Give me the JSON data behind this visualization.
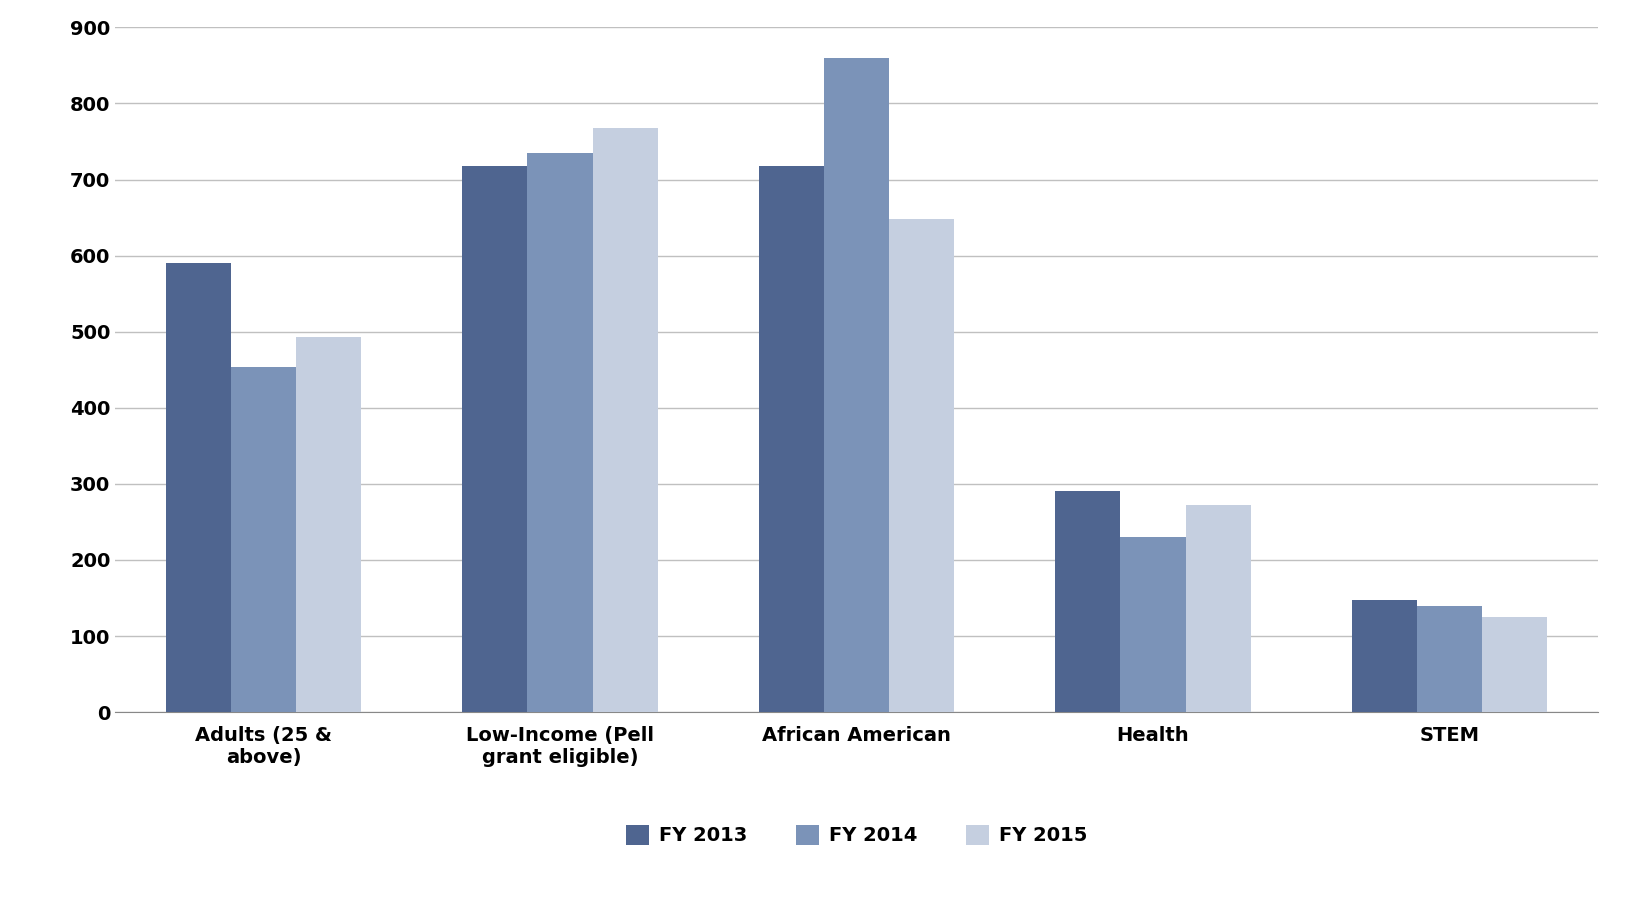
{
  "categories": [
    "Adults (25 &\nabove)",
    "Low-Income (Pell\ngrant eligible)",
    "African American",
    "Health",
    "STEM"
  ],
  "series": {
    "FY 2013": [
      590,
      718,
      718,
      290,
      148
    ],
    "FY 2014": [
      453,
      735,
      860,
      230,
      140
    ],
    "FY 2015": [
      493,
      768,
      648,
      272,
      125
    ]
  },
  "series_colors": {
    "FY 2013": "#4f6590",
    "FY 2014": "#7b93b8",
    "FY 2015": "#c5cfe0"
  },
  "legend_order": [
    "FY 2013",
    "FY 2014",
    "FY 2015"
  ],
  "ylim": [
    0,
    900
  ],
  "yticks": [
    0,
    100,
    200,
    300,
    400,
    500,
    600,
    700,
    800,
    900
  ],
  "background_color": "#ffffff",
  "plot_bg_color": "#ffffff",
  "grid_color": "#c0c0c0",
  "bar_width": 0.22,
  "tick_fontsize": 14,
  "legend_fontsize": 14
}
